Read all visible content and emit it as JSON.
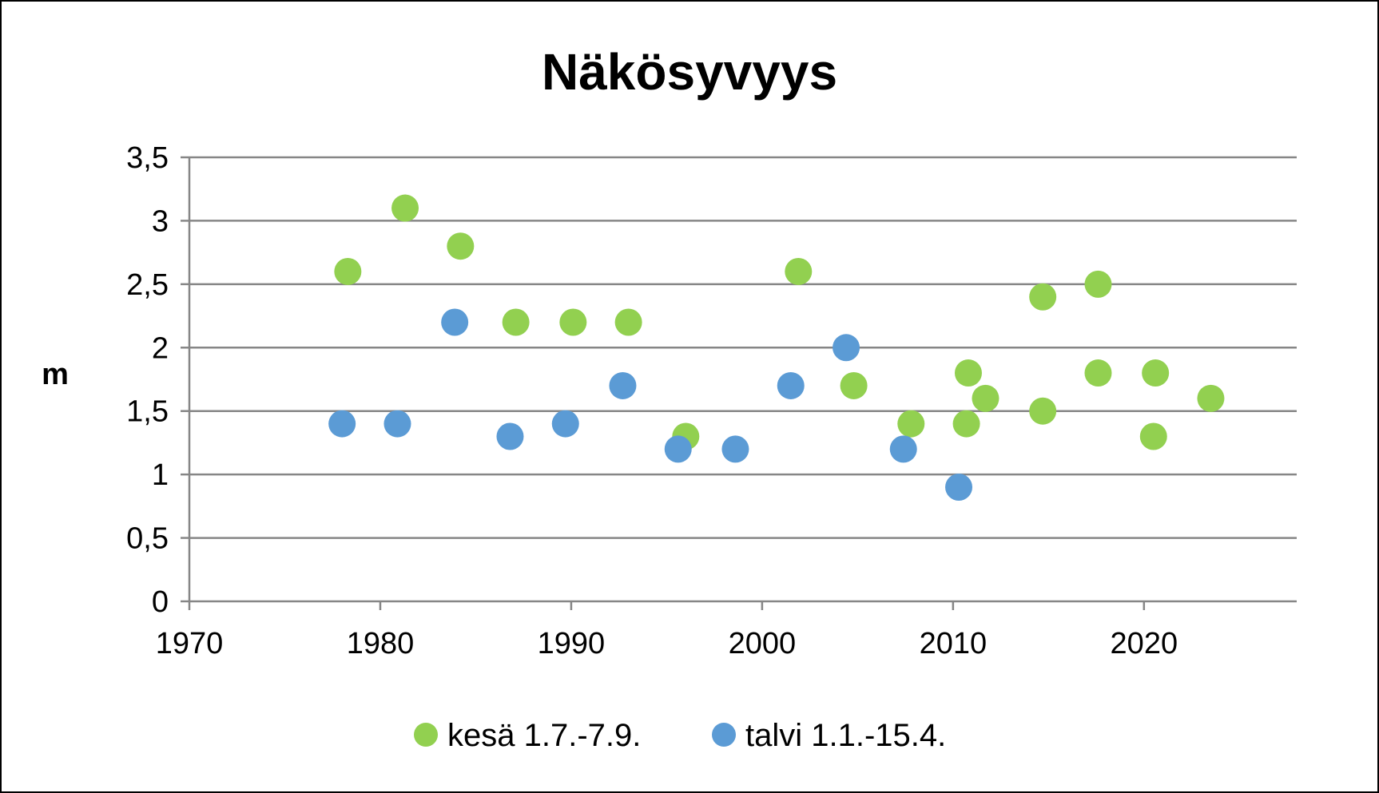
{
  "chart_data": {
    "type": "scatter",
    "title": "Näkösyvyys",
    "xlabel": "",
    "ylabel": "m",
    "xlim": [
      1970,
      2028
    ],
    "ylim": [
      0,
      3.5
    ],
    "x_ticks": [
      1970,
      1980,
      1990,
      2000,
      2010,
      2020
    ],
    "x_tick_labels": [
      "1970",
      "1980",
      "1990",
      "2000",
      "2010",
      "2020"
    ],
    "y_ticks": [
      0,
      0.5,
      1,
      1.5,
      2,
      2.5,
      3,
      3.5
    ],
    "y_tick_labels": [
      "0",
      "0,5",
      "1",
      "1,5",
      "2",
      "2,5",
      "3",
      "3,5"
    ],
    "grid": "horizontal",
    "legend_position": "bottom",
    "series": [
      {
        "name": "kesä 1.7.-7.9.",
        "color": "#92d050",
        "points": [
          {
            "x": 1978.3,
            "y": 2.6
          },
          {
            "x": 1981.3,
            "y": 3.1
          },
          {
            "x": 1984.2,
            "y": 2.8
          },
          {
            "x": 1987.1,
            "y": 2.2
          },
          {
            "x": 1990.1,
            "y": 2.2
          },
          {
            "x": 1993.0,
            "y": 2.2
          },
          {
            "x": 1996.0,
            "y": 1.3
          },
          {
            "x": 2001.9,
            "y": 2.6
          },
          {
            "x": 2004.8,
            "y": 1.7
          },
          {
            "x": 2007.8,
            "y": 1.4
          },
          {
            "x": 2010.7,
            "y": 1.4
          },
          {
            "x": 2010.8,
            "y": 1.8
          },
          {
            "x": 2011.7,
            "y": 1.6
          },
          {
            "x": 2014.7,
            "y": 1.5
          },
          {
            "x": 2014.7,
            "y": 2.4
          },
          {
            "x": 2017.6,
            "y": 1.8
          },
          {
            "x": 2017.6,
            "y": 2.5
          },
          {
            "x": 2020.5,
            "y": 1.3
          },
          {
            "x": 2020.6,
            "y": 1.8
          },
          {
            "x": 2023.5,
            "y": 1.6
          }
        ]
      },
      {
        "name": "talvi 1.1.-15.4.",
        "color": "#5b9bd5",
        "points": [
          {
            "x": 1978.0,
            "y": 1.4
          },
          {
            "x": 1980.9,
            "y": 1.4
          },
          {
            "x": 1983.9,
            "y": 2.2
          },
          {
            "x": 1986.8,
            "y": 1.3
          },
          {
            "x": 1989.7,
            "y": 1.4
          },
          {
            "x": 1992.7,
            "y": 1.7
          },
          {
            "x": 1995.6,
            "y": 1.2
          },
          {
            "x": 1998.6,
            "y": 1.2
          },
          {
            "x": 2001.5,
            "y": 1.7
          },
          {
            "x": 2004.4,
            "y": 2.0
          },
          {
            "x": 2007.4,
            "y": 1.2
          },
          {
            "x": 2010.3,
            "y": 0.9
          }
        ]
      }
    ]
  }
}
